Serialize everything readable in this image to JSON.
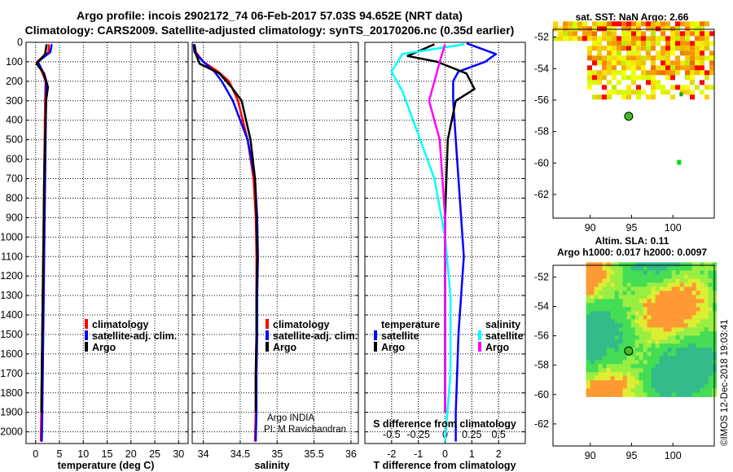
{
  "title": {
    "line1": "Argo profile: incois 2902172_74 06-Feb-2017 57.03S 94.652E (NRT data)",
    "line2": "Climatology: CARS2009. Satellite-adjusted climatology: synTS_20170206.nc (0.35d earlier)"
  },
  "colors": {
    "climatology": "#ff0000",
    "satellite": "#0000ff",
    "argo": "#000000",
    "sat_salinity": "#00ffff",
    "argo_salinity": "#ff00ff"
  },
  "depth_axis": {
    "range": [
      0,
      2060
    ],
    "ticks": [
      0,
      100,
      200,
      300,
      400,
      500,
      600,
      700,
      800,
      900,
      1000,
      1100,
      1200,
      1300,
      1400,
      1500,
      1600,
      1700,
      1800,
      1900,
      2000
    ]
  },
  "chart_data": [
    {
      "type": "line",
      "id": "temperature",
      "xlabel": "temperature (deg C)",
      "ylabel": "depth",
      "xlim": [
        -2,
        32
      ],
      "xticks": [
        0,
        5,
        10,
        15,
        20,
        25,
        30
      ],
      "legend": {
        "climatology": "climatology",
        "satellite": "satellite-adj. clim.",
        "argo": "Argo"
      },
      "series": [
        {
          "name": "climatology",
          "color": "#ff0000",
          "x": [
            2.8,
            2.7,
            0.3,
            1.3,
            2.1,
            2.0,
            1.9,
            1.8,
            1.7,
            1.6,
            1.5,
            1.4,
            1.3,
            1.2,
            1.1
          ],
          "y": [
            10,
            50,
            100,
            150,
            200,
            300,
            500,
            700,
            900,
            1100,
            1300,
            1500,
            1700,
            1900,
            2050
          ]
        },
        {
          "name": "satellite-adj. clim.",
          "color": "#0000ff",
          "x": [
            3.4,
            3.1,
            0.5,
            1.5,
            2.2,
            2.2,
            2.1,
            2.0,
            1.9,
            1.8,
            1.7,
            1.6,
            1.5,
            1.4,
            1.3
          ],
          "y": [
            10,
            50,
            100,
            150,
            200,
            300,
            500,
            700,
            900,
            1100,
            1300,
            1500,
            1700,
            1900,
            2050
          ]
        },
        {
          "name": "Argo",
          "color": "#000000",
          "x": [
            2.3,
            2.0,
            0.2,
            1.8,
            2.6,
            2.2,
            2.0,
            1.8,
            1.7,
            1.6,
            1.5,
            1.4,
            1.3,
            1.2
          ],
          "y": [
            10,
            60,
            110,
            160,
            230,
            300,
            500,
            700,
            900,
            1100,
            1300,
            1500,
            1700,
            1900
          ]
        }
      ]
    },
    {
      "type": "line",
      "id": "salinity",
      "xlabel": "salinity",
      "xlim": [
        33.85,
        36.1
      ],
      "xticks": [
        34,
        34.5,
        35,
        35.5,
        36
      ],
      "xtick_labels": [
        "34",
        "34.5",
        "35",
        "35.5",
        "36"
      ],
      "legend": {
        "climatology": "climatology",
        "satellite": "satellite-adj. clim.",
        "argo": "Argo"
      },
      "annotation": [
        "Argo INDIA",
        "PI: M Ravichandran"
      ],
      "series": [
        {
          "name": "climatology",
          "color": "#ff0000",
          "x": [
            33.88,
            33.9,
            34.0,
            34.2,
            34.35,
            34.47,
            34.6,
            34.68,
            34.71,
            34.72,
            34.72,
            34.72,
            34.71,
            34.71,
            34.7
          ],
          "y": [
            10,
            50,
            100,
            150,
            200,
            300,
            500,
            700,
            900,
            1100,
            1300,
            1500,
            1700,
            1900,
            2050
          ]
        },
        {
          "name": "satellite-adj. clim.",
          "color": "#0000ff",
          "x": [
            33.87,
            33.88,
            34.0,
            34.15,
            34.25,
            34.4,
            34.6,
            34.7,
            34.73,
            34.74,
            34.73,
            34.73,
            34.72,
            34.72,
            34.71
          ],
          "y": [
            10,
            50,
            100,
            150,
            200,
            300,
            500,
            700,
            900,
            1100,
            1300,
            1500,
            1700,
            1900,
            2050
          ]
        },
        {
          "name": "Argo",
          "color": "#000000",
          "x": [
            33.88,
            33.9,
            33.95,
            34.22,
            34.38,
            34.52,
            34.64,
            34.7,
            34.72,
            34.73,
            34.72,
            34.72,
            34.71,
            34.71
          ],
          "y": [
            10,
            60,
            110,
            160,
            230,
            300,
            500,
            700,
            900,
            1100,
            1300,
            1500,
            1700,
            1900
          ]
        }
      ]
    },
    {
      "type": "line",
      "id": "difference",
      "xlabel": "T difference from climatology",
      "xlim": [
        -3,
        3
      ],
      "xticks": [
        -2,
        -1,
        0,
        1,
        2
      ],
      "top_xlabel": "S difference from climatology",
      "top_xticks": [
        -0.5,
        -0.25,
        0,
        0.25,
        0.5
      ],
      "top_xtick_labels": [
        "-0.5",
        "-0.25",
        "0",
        "0.25",
        "0.5"
      ],
      "legend": {
        "temperature_title": "temperature",
        "salinity_title": "salinity",
        "t_satellite": "satellite",
        "t_argo": "Argo",
        "s_satellite": "satellite",
        "s_argo": "Argo"
      },
      "series": [
        {
          "name": "T satellite",
          "color": "#0000ff",
          "x": [
            0.8,
            1.9,
            1.5,
            0.5,
            0.3,
            0.3,
            0.4,
            0.5,
            0.6,
            0.7,
            0.6,
            0.5,
            0.45,
            0.4,
            0.4
          ],
          "y": [
            5,
            60,
            100,
            150,
            200,
            300,
            500,
            700,
            900,
            1100,
            1300,
            1500,
            1700,
            1900,
            2050
          ]
        },
        {
          "name": "T Argo",
          "color": "#000000",
          "x": [
            -0.4,
            -1.4,
            -0.3,
            0.8,
            1.1,
            0.4,
            0.1,
            0.05,
            0.0,
            0.0,
            0.0,
            0.0,
            0.0,
            0.0
          ],
          "y": [
            10,
            70,
            100,
            160,
            240,
            300,
            500,
            700,
            900,
            1100,
            1300,
            1500,
            1700,
            1900
          ]
        },
        {
          "name": "S satellite",
          "color": "#00ffff",
          "x": [
            0.18,
            -0.4,
            -0.5,
            -0.4,
            -0.3,
            -0.1,
            0.0,
            0.05,
            0.05,
            0.0
          ],
          "y": [
            10,
            60,
            150,
            250,
            400,
            700,
            1000,
            1300,
            1700,
            2050
          ]
        },
        {
          "name": "S Argo",
          "color": "#ff00ff",
          "x": [
            0.0,
            -0.05,
            -0.1,
            -0.15,
            -0.05,
            0.0,
            0.0,
            0.0
          ],
          "y": [
            10,
            100,
            200,
            300,
            500,
            900,
            1500,
            1900
          ]
        }
      ]
    }
  ],
  "maps": {
    "sst": {
      "title": "sat. SST: NaN Argo: 2.66",
      "yticks": [
        "-52",
        "-54",
        "-56",
        "-58",
        "-60",
        "-62"
      ],
      "xticks": [
        "90",
        "95",
        "100"
      ]
    },
    "sla": {
      "title1": "Altim. SLA: 0.11",
      "title2": "Argo h1000: 0.017 h2000: 0.0097",
      "yticks": [
        "-52",
        "-54",
        "-56",
        "-58",
        "-60",
        "-62"
      ],
      "xticks": [
        "90",
        "95",
        "100"
      ]
    }
  },
  "footer": "©IMOS 12-Dec-2018 19:03:41"
}
